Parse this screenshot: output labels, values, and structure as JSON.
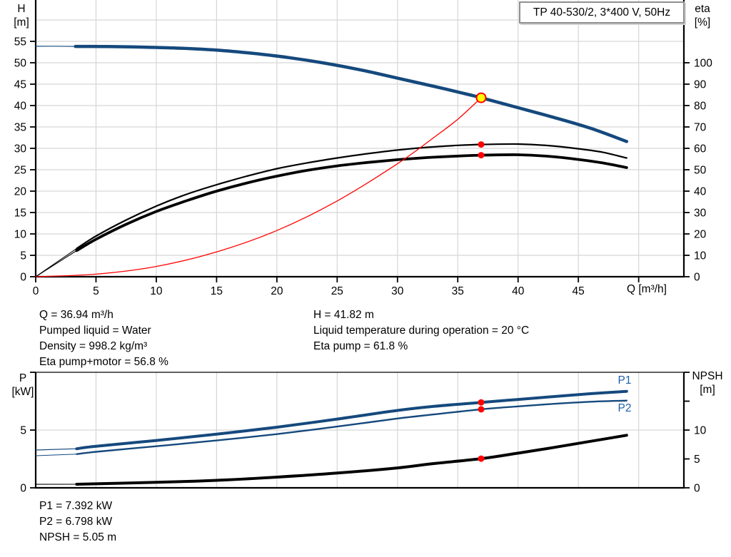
{
  "window": {
    "background": "#ffffff"
  },
  "colors": {
    "curve_blue": "#15497d",
    "annotation_blue": "#1f5fa8",
    "red": "#ff0000",
    "yellow": "#ffff00",
    "black": "#000000",
    "grid": "#d6d6d6",
    "axis": "#000000",
    "title_border": "#8f8f8f"
  },
  "axis_labels": {
    "h": "H",
    "h_unit": "[m]",
    "eta": "eta",
    "eta_unit": "[%]",
    "p": "P",
    "p_unit": "[kW]",
    "npsh": "NPSH",
    "npsh_unit": "[m]",
    "q": "Q [m³/h]"
  },
  "stats": {
    "left": [
      "Q = 36.94 m³/h",
      "Pumped liquid = Water",
      "Density = 998.2 kg/m³",
      "Eta pump+motor = 56.8 %"
    ],
    "right": [
      "H = 41.82 m",
      "Liquid temperature during operation = 20 °C",
      "Eta pump = 61.8 %"
    ],
    "bottom": [
      "P1 = 7.392 kW",
      "P2 = 6.798 kW",
      "NPSH = 5.05 m"
    ]
  },
  "duty_point": {
    "q_m3h": 36.94,
    "h_m": 41.82,
    "eta_pump_pct": 61.8,
    "eta_pump_motor_pct": 56.8,
    "p1_kw": 7.392,
    "p2_kw": 6.798,
    "npsh_m": 5.05
  },
  "chart_data": [
    {
      "name": "h-q-chart",
      "type": "line",
      "title": "TP 40-530/2, 3*400 V, 50Hz",
      "x_axis": {
        "label": "Q [m³/h]",
        "min": 0,
        "max": 53.75,
        "ticks": [
          0,
          5,
          10,
          15,
          20,
          25,
          30,
          35,
          40,
          45
        ],
        "tick_marks": [
          0,
          5,
          10,
          15,
          20,
          25,
          30,
          35,
          40,
          45,
          50
        ],
        "grid": [
          5,
          10,
          15,
          20,
          25,
          30,
          35,
          40,
          45,
          50
        ]
      },
      "y_left": {
        "label": "H [m]",
        "min": 0,
        "max": 65,
        "ticks": [
          0,
          5,
          10,
          15,
          20,
          25,
          30,
          35,
          40,
          45,
          50,
          55
        ],
        "tick_marks": [
          0,
          5,
          10,
          15,
          20,
          25,
          30,
          35,
          40,
          45,
          50,
          55
        ],
        "grid": [
          5,
          10,
          15,
          20,
          25,
          30,
          35,
          40,
          45,
          50,
          55,
          60
        ]
      },
      "y_right": {
        "label": "eta [%]",
        "min": 0,
        "max": 130,
        "ticks": [
          0,
          10,
          20,
          30,
          40,
          50,
          60,
          70,
          80,
          90,
          100
        ],
        "tick_marks": [
          0,
          10,
          20,
          30,
          40,
          50,
          60,
          70,
          80,
          90,
          100
        ]
      },
      "series": [
        {
          "name": "head-curve-lead",
          "axis": "left",
          "color": "curve_blue",
          "width": 1.2,
          "points": [
            [
              0,
              53.85
            ],
            [
              1.6,
              53.87
            ],
            [
              3.3,
              53.82
            ]
          ]
        },
        {
          "name": "head-curve",
          "axis": "left",
          "color": "curve_blue",
          "width": 4.5,
          "points": [
            [
              3.3,
              53.82
            ],
            [
              6,
              53.8
            ],
            [
              9,
              53.65
            ],
            [
              12,
              53.4
            ],
            [
              15,
              52.95
            ],
            [
              18,
              52.2
            ],
            [
              21,
              51.2
            ],
            [
              24,
              49.9
            ],
            [
              27,
              48.3
            ],
            [
              30,
              46.4
            ],
            [
              33,
              44.5
            ],
            [
              36,
              42.5
            ],
            [
              36.94,
              41.82
            ],
            [
              40,
              39.5
            ],
            [
              43,
              37.2
            ],
            [
              46,
              34.7
            ],
            [
              49,
              31.6
            ]
          ]
        },
        {
          "name": "eta-pump-curve-lead",
          "axis": "right",
          "color": "black",
          "width": 1.1,
          "points": [
            [
              0,
              0
            ],
            [
              1.7,
              6.6
            ],
            [
              3.4,
              13.2
            ]
          ]
        },
        {
          "name": "eta-pump-curve",
          "axis": "right",
          "color": "black",
          "width": 2.2,
          "points": [
            [
              3.4,
              13.2
            ],
            [
              5,
              19
            ],
            [
              7.5,
              26.5
            ],
            [
              10,
              33
            ],
            [
              12.5,
              38.5
            ],
            [
              15,
              43
            ],
            [
              17.5,
              47
            ],
            [
              20,
              50.5
            ],
            [
              22.5,
              53.2
            ],
            [
              25,
              55.5
            ],
            [
              27.5,
              57.5
            ],
            [
              30,
              59.2
            ],
            [
              32.5,
              60.5
            ],
            [
              35,
              61.4
            ],
            [
              36.94,
              61.8
            ],
            [
              40,
              62
            ],
            [
              42.5,
              61.3
            ],
            [
              45,
              59.8
            ],
            [
              47,
              58.2
            ],
            [
              49,
              55.5
            ]
          ]
        },
        {
          "name": "eta-pump-motor-curve-lead",
          "axis": "right",
          "color": "black",
          "width": 1.1,
          "points": [
            [
              0,
              0
            ],
            [
              1.7,
              6.1
            ],
            [
              3.4,
              12.2
            ]
          ]
        },
        {
          "name": "eta-pump-motor-curve",
          "axis": "right",
          "color": "black",
          "width": 3.8,
          "points": [
            [
              3.4,
              12.2
            ],
            [
              5,
              17.5
            ],
            [
              7.5,
              24.5
            ],
            [
              10,
              30.5
            ],
            [
              12.5,
              35.5
            ],
            [
              15,
              40
            ],
            [
              17.5,
              43.8
            ],
            [
              20,
              47
            ],
            [
              22.5,
              49.7
            ],
            [
              25,
              51.8
            ],
            [
              27.5,
              53.4
            ],
            [
              30,
              54.7
            ],
            [
              32.5,
              55.7
            ],
            [
              35,
              56.4
            ],
            [
              36.94,
              56.8
            ],
            [
              40,
              57
            ],
            [
              42.5,
              56.3
            ],
            [
              45,
              54.8
            ],
            [
              47,
              53.2
            ],
            [
              49,
              51
            ]
          ]
        },
        {
          "name": "system-curve",
          "axis": "left",
          "color": "red",
          "width": 1.3,
          "points": [
            [
              0,
              0
            ],
            [
              5,
              0.6
            ],
            [
              10,
              2.4
            ],
            [
              15,
              5.8
            ],
            [
              20,
              10.8
            ],
            [
              25,
              17.7
            ],
            [
              30,
              26.4
            ],
            [
              33,
              32.5
            ],
            [
              35,
              36.8
            ],
            [
              36.94,
              41.82
            ]
          ]
        }
      ],
      "markers": [
        {
          "name": "duty-point",
          "axis": "left",
          "x": 36.94,
          "y": 41.82,
          "style": "duty"
        },
        {
          "name": "eta-pump-point",
          "axis": "right",
          "x": 36.94,
          "y": 61.8,
          "style": "dot"
        },
        {
          "name": "eta-pump-motor-point",
          "axis": "right",
          "x": 36.94,
          "y": 56.8,
          "style": "dot"
        }
      ]
    },
    {
      "name": "power-npsh-chart",
      "type": "line",
      "title": "",
      "x_axis": {
        "label": "",
        "min": 0,
        "max": 53.75,
        "ticks": [],
        "tick_marks": [],
        "grid": [
          5,
          10,
          15,
          20,
          25,
          30,
          35,
          40,
          45,
          50
        ]
      },
      "y_left": {
        "label": "P [kW]",
        "min": 0,
        "max": 10,
        "ticks": [
          0,
          5
        ],
        "tick_marks": [
          0,
          5,
          10
        ],
        "grid": [
          5
        ]
      },
      "y_right": {
        "label": "NPSH [m]",
        "min": 0,
        "max": 20,
        "ticks": [
          0,
          5,
          10
        ],
        "tick_marks": [
          0,
          5,
          10,
          15,
          20
        ]
      },
      "series": [
        {
          "name": "p1-curve-lead",
          "axis": "left",
          "color": "curve_blue",
          "width": 1.2,
          "points": [
            [
              0,
              3.27
            ],
            [
              3.4,
              3.38
            ]
          ]
        },
        {
          "name": "p1-curve",
          "axis": "left",
          "color": "curve_blue",
          "width": 4,
          "points": [
            [
              3.4,
              3.38
            ],
            [
              5,
              3.6
            ],
            [
              10,
              4.1
            ],
            [
              15,
              4.65
            ],
            [
              20,
              5.25
            ],
            [
              25,
              5.95
            ],
            [
              30,
              6.7
            ],
            [
              33,
              7.05
            ],
            [
              36.94,
              7.392
            ],
            [
              40,
              7.65
            ],
            [
              43,
              7.9
            ],
            [
              46,
              8.15
            ],
            [
              49,
              8.35
            ]
          ]
        },
        {
          "name": "p2-curve-lead",
          "axis": "left",
          "color": "curve_blue",
          "width": 1,
          "points": [
            [
              0,
              2.78
            ],
            [
              3.4,
              2.92
            ]
          ]
        },
        {
          "name": "p2-curve",
          "axis": "left",
          "color": "curve_blue",
          "width": 2.4,
          "points": [
            [
              3.4,
              2.92
            ],
            [
              5,
              3.12
            ],
            [
              10,
              3.6
            ],
            [
              15,
              4.1
            ],
            [
              20,
              4.65
            ],
            [
              25,
              5.3
            ],
            [
              30,
              6.0
            ],
            [
              33,
              6.35
            ],
            [
              36.94,
              6.798
            ],
            [
              40,
              7.05
            ],
            [
              43,
              7.27
            ],
            [
              46,
              7.45
            ],
            [
              49,
              7.55
            ]
          ]
        },
        {
          "name": "npsh-curve-lead",
          "axis": "right",
          "color": "black",
          "width": 1.1,
          "points": [
            [
              0,
              0.6
            ],
            [
              3.4,
              0.62
            ]
          ]
        },
        {
          "name": "npsh-curve",
          "axis": "right",
          "color": "black",
          "width": 4,
          "points": [
            [
              3.4,
              0.62
            ],
            [
              10,
              0.95
            ],
            [
              15,
              1.3
            ],
            [
              20,
              1.85
            ],
            [
              25,
              2.55
            ],
            [
              30,
              3.45
            ],
            [
              33,
              4.2
            ],
            [
              36.94,
              5.05
            ],
            [
              40,
              6.0
            ],
            [
              43,
              7.0
            ],
            [
              46,
              8.05
            ],
            [
              49,
              9.1
            ]
          ]
        }
      ],
      "markers": [
        {
          "name": "p1-point",
          "axis": "left",
          "x": 36.94,
          "y": 7.392,
          "style": "dot"
        },
        {
          "name": "p2-point",
          "axis": "left",
          "x": 36.94,
          "y": 6.798,
          "style": "dot"
        },
        {
          "name": "npsh-point",
          "axis": "right",
          "x": 36.94,
          "y": 5.05,
          "style": "dot"
        }
      ],
      "annotations": [
        {
          "text": "P1"
        },
        {
          "text": "P2"
        }
      ]
    }
  ]
}
